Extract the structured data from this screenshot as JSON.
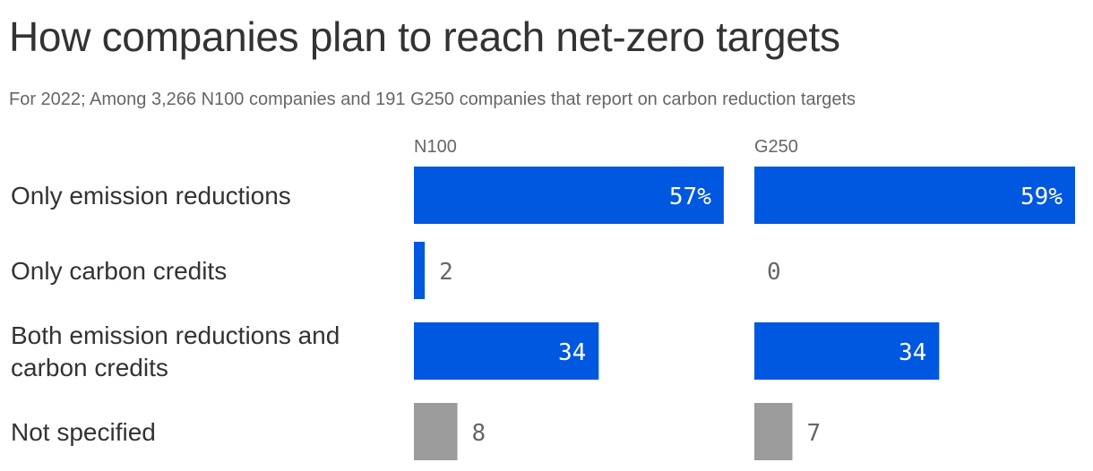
{
  "header": {
    "title": "How companies plan to reach net-zero targets",
    "subtitle": "For 2022; Among 3,266 N100 companies and 191 G250 companies that report on carbon reduction targets"
  },
  "colors": {
    "primary": "#0057e0",
    "muted": "#9b9b9b",
    "label_inside": "#ffffff",
    "label_outside": "#666666"
  },
  "chart_data": {
    "type": "bar",
    "orientation": "horizontal",
    "categories": [
      [
        "Only emission reductions"
      ],
      [
        "Only carbon credits"
      ],
      [
        "Both emission reductions and",
        "carbon credits"
      ],
      [
        "Not specified"
      ]
    ],
    "series": [
      {
        "name": "N100",
        "values": [
          57,
          2,
          34,
          8
        ],
        "labels": [
          "57%",
          "2",
          "34",
          "8"
        ]
      },
      {
        "name": "G250",
        "values": [
          59,
          0,
          34,
          7
        ],
        "labels": [
          "59%",
          "0",
          "34",
          "7"
        ]
      }
    ],
    "muted_categories": [
      3
    ],
    "xlim": [
      0,
      59
    ],
    "grid": false
  }
}
